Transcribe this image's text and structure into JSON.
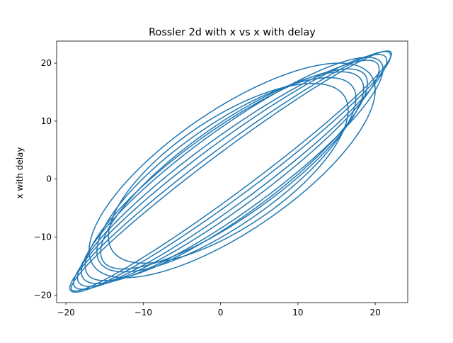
{
  "chart_data": {
    "type": "line",
    "title": "Rossler 2d with x vs x with delay",
    "xlabel": "",
    "ylabel": "x with delay",
    "xlim": [
      -21.2,
      24.2
    ],
    "ylim": [
      -21.3,
      23.8
    ],
    "xticks": [
      -20,
      -10,
      0,
      10,
      20
    ],
    "yticks": [
      -20,
      -10,
      0,
      10,
      20
    ],
    "xtick_labels": [
      "−20",
      "−10",
      "0",
      "10",
      "20"
    ],
    "ytick_labels": [
      "−20",
      "−10",
      "0",
      "10",
      "20"
    ],
    "grid": false,
    "series": [
      {
        "color": "#1f77b4",
        "loops": [
          {
            "a": -19.5,
            "b": 22.0,
            "delay_phase": 0.12
          },
          {
            "a": -18.5,
            "b": 20.5,
            "delay_phase": 0.18
          },
          {
            "a": -17.5,
            "b": 19.0,
            "delay_phase": 0.24
          },
          {
            "a": -16.0,
            "b": 17.5,
            "delay_phase": 0.3
          },
          {
            "a": -14.5,
            "b": 16.5,
            "delay_phase": 0.36
          },
          {
            "a": -19.0,
            "b": 21.5,
            "delay_phase": 0.15
          },
          {
            "a": -18.0,
            "b": 21.0,
            "delay_phase": 0.21
          },
          {
            "a": -15.5,
            "b": 18.5,
            "delay_phase": 0.27
          },
          {
            "a": -19.3,
            "b": 22.1,
            "delay_phase": 0.1
          },
          {
            "a": -17.0,
            "b": 20.0,
            "delay_phase": 0.33
          }
        ]
      }
    ]
  }
}
